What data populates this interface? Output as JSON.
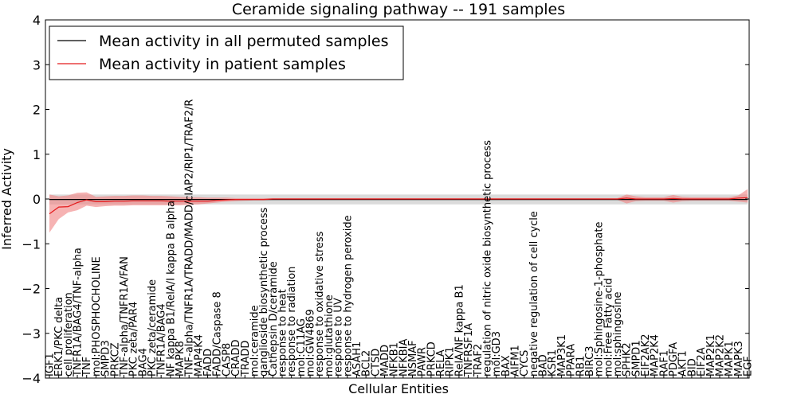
{
  "chart_data": {
    "type": "line",
    "title": "Ceramide signaling pathway -- 191 samples",
    "xlabel": "Cellular Entities",
    "ylabel": "Inferred Activity",
    "ylim": [
      -4,
      4
    ],
    "yticks": [
      4,
      3,
      2,
      1,
      0,
      -1,
      -2,
      -3,
      -4
    ],
    "ytick_labels": [
      "4",
      "3",
      "2",
      "1",
      "0",
      "−1",
      "−2",
      "−3",
      "−4"
    ],
    "grid": false,
    "legend_position": "top-left",
    "categories": [
      "IGF1",
      "ERK1/PKC delta",
      "cell proliferation",
      "TNFR1A/BAG4/TNF-alpha",
      "TNF",
      "mol:PHOSPHOCHOLINE",
      "SMPD3",
      "PRKCZ",
      "TNF-alpha/TNFR1A/FAN",
      "PKC zeta/PAR4",
      "BAG4",
      "PKC zeta/ceramide",
      "TNFR1A/BAG4",
      "NF kappa B1/RelA/I kappa B alpha",
      "MAPK8",
      "TNF-alpha/TNFR1A/TRADD/MADD/cIAP2/RIP1/TRAF2/R",
      "MAP4K4",
      "FADD",
      "FADD/Caspase 8",
      "CASP8",
      "CRADD",
      "TRADD",
      "mol:ceramide",
      "ganglioside biosynthetic process",
      "Cathepsin D/ceramide",
      "response to heat",
      "response to radiation",
      "mol:C11AG",
      "mol:GW4869",
      "response to oxidative stress",
      "mol:glutathione",
      "response to UV",
      "response to hydrogen peroxide",
      "ASAH1",
      "BCL2",
      "CTSD",
      "MADD",
      "NFKB1",
      "NFKBIA",
      "NSMAF",
      "PAWR",
      "PRKCD",
      "RELA",
      "RIPK1",
      "RelA/NF kappa B1",
      "TNFRSF1A",
      "TRAF2",
      "regulation of nitric oxide biosynthetic process",
      "mol:GD3",
      "BAX",
      "AIFM1",
      "CYCS",
      "negative regulation of cell cycle",
      "BAD",
      "KSR1",
      "MAP3K1",
      "PPARA",
      "RB1",
      "BIRC3",
      "mol:Sphingosine-1-phosphate",
      "mol:Free Fatty acid",
      "mol:sphingosine",
      "SPHK2",
      "SMPD1",
      "EIF2AK2",
      "MAP2K4",
      "RAF1",
      "PDGFA",
      "AKT1",
      "BID",
      "EIF2A",
      "MAP2K1",
      "MAP2K2",
      "MAPK1",
      "MAPK3",
      "EGF"
    ],
    "series": [
      {
        "name": "Mean activity in all permuted samples",
        "color": "#000000",
        "band_color": "#bdbdbd",
        "values": [
          -0.01,
          -0.01,
          -0.01,
          -0.01,
          -0.01,
          -0.01,
          -0.01,
          -0.01,
          -0.01,
          -0.01,
          -0.01,
          -0.01,
          -0.01,
          -0.01,
          -0.01,
          -0.01,
          -0.01,
          -0.01,
          -0.01,
          -0.01,
          -0.01,
          -0.01,
          -0.01,
          -0.01,
          -0.01,
          -0.01,
          -0.01,
          -0.01,
          -0.01,
          -0.01,
          -0.01,
          -0.01,
          -0.01,
          -0.01,
          -0.01,
          -0.01,
          -0.01,
          -0.01,
          -0.01,
          -0.01,
          -0.01,
          -0.01,
          -0.01,
          -0.01,
          -0.01,
          -0.01,
          -0.01,
          -0.01,
          -0.01,
          -0.01,
          -0.01,
          -0.01,
          -0.01,
          -0.01,
          -0.01,
          -0.01,
          -0.01,
          -0.01,
          -0.01,
          -0.01,
          -0.01,
          -0.01,
          -0.01,
          -0.01,
          -0.01,
          -0.01,
          -0.01,
          -0.01,
          -0.01,
          -0.01,
          -0.01,
          -0.01,
          -0.01,
          -0.01,
          -0.01,
          -0.01
        ],
        "band_lower": [
          -0.12,
          -0.12,
          -0.12,
          -0.12,
          -0.12,
          -0.12,
          -0.12,
          -0.12,
          -0.12,
          -0.12,
          -0.12,
          -0.12,
          -0.12,
          -0.12,
          -0.12,
          -0.12,
          -0.12,
          -0.12,
          -0.12,
          -0.12,
          -0.12,
          -0.12,
          -0.12,
          -0.12,
          -0.12,
          -0.12,
          -0.12,
          -0.12,
          -0.12,
          -0.12,
          -0.12,
          -0.12,
          -0.12,
          -0.12,
          -0.12,
          -0.12,
          -0.12,
          -0.12,
          -0.12,
          -0.12,
          -0.12,
          -0.12,
          -0.12,
          -0.12,
          -0.12,
          -0.12,
          -0.12,
          -0.12,
          -0.12,
          -0.12,
          -0.12,
          -0.12,
          -0.12,
          -0.12,
          -0.12,
          -0.12,
          -0.12,
          -0.12,
          -0.12,
          -0.12,
          -0.12,
          -0.12,
          -0.12,
          -0.12,
          -0.12,
          -0.12,
          -0.12,
          -0.12,
          -0.12,
          -0.12,
          -0.12,
          -0.12,
          -0.12,
          -0.12,
          -0.12,
          -0.12
        ],
        "band_upper": [
          0.1,
          0.1,
          0.1,
          0.1,
          0.1,
          0.1,
          0.1,
          0.1,
          0.1,
          0.1,
          0.1,
          0.1,
          0.1,
          0.1,
          0.1,
          0.1,
          0.1,
          0.1,
          0.1,
          0.1,
          0.1,
          0.1,
          0.1,
          0.1,
          0.1,
          0.1,
          0.1,
          0.1,
          0.1,
          0.1,
          0.1,
          0.1,
          0.1,
          0.1,
          0.1,
          0.1,
          0.1,
          0.1,
          0.1,
          0.1,
          0.1,
          0.1,
          0.1,
          0.1,
          0.1,
          0.1,
          0.1,
          0.1,
          0.1,
          0.1,
          0.1,
          0.1,
          0.1,
          0.1,
          0.1,
          0.1,
          0.1,
          0.1,
          0.1,
          0.1,
          0.1,
          0.1,
          0.1,
          0.1,
          0.1,
          0.1,
          0.1,
          0.1,
          0.1,
          0.1,
          0.1,
          0.1,
          0.1,
          0.1,
          0.1,
          0.1
        ]
      },
      {
        "name": "Mean activity in patient samples",
        "color": "#e41a1c",
        "band_color": "#f08080",
        "values": [
          -0.33,
          -0.18,
          -0.17,
          -0.08,
          -0.02,
          -0.06,
          -0.06,
          -0.05,
          -0.05,
          -0.04,
          -0.04,
          -0.04,
          -0.04,
          -0.05,
          -0.05,
          -0.05,
          -0.05,
          -0.05,
          -0.03,
          -0.02,
          -0.01,
          -0.01,
          -0.01,
          -0.01,
          0,
          0,
          0,
          0,
          0,
          0,
          0,
          0,
          0,
          0,
          0,
          0,
          0,
          0,
          0,
          0,
          0,
          0,
          0,
          0,
          0,
          0,
          0,
          0,
          0,
          0,
          0,
          0,
          0,
          0,
          0,
          0,
          0,
          0,
          0,
          0,
          0,
          0,
          0.02,
          0,
          0,
          0,
          0,
          0.01,
          0,
          0,
          0,
          0,
          0,
          0,
          0.02,
          0.03
        ],
        "band_lower": [
          -0.75,
          -0.45,
          -0.3,
          -0.25,
          -0.15,
          -0.18,
          -0.16,
          -0.15,
          -0.15,
          -0.14,
          -0.14,
          -0.14,
          -0.14,
          -0.14,
          -0.14,
          -0.13,
          -0.12,
          -0.1,
          -0.08,
          -0.06,
          -0.05,
          -0.04,
          -0.03,
          -0.03,
          -0.02,
          -0.02,
          -0.02,
          -0.02,
          -0.02,
          -0.02,
          -0.02,
          -0.02,
          -0.02,
          -0.02,
          -0.02,
          -0.02,
          -0.02,
          -0.02,
          -0.02,
          -0.02,
          -0.02,
          -0.02,
          -0.02,
          -0.02,
          -0.02,
          -0.02,
          -0.02,
          -0.02,
          -0.02,
          -0.02,
          -0.02,
          -0.02,
          -0.02,
          -0.02,
          -0.02,
          -0.02,
          -0.02,
          -0.02,
          -0.02,
          -0.02,
          -0.02,
          -0.02,
          -0.1,
          -0.05,
          -0.04,
          -0.04,
          -0.04,
          -0.08,
          -0.05,
          -0.04,
          -0.04,
          -0.04,
          -0.04,
          -0.04,
          -0.06,
          -0.08
        ],
        "band_upper": [
          0.1,
          0.06,
          0.08,
          0.14,
          0.15,
          0.05,
          0.06,
          0.07,
          0.07,
          0.08,
          0.08,
          0.07,
          0.07,
          0.06,
          0.05,
          0.04,
          0.04,
          0.03,
          0.03,
          0.03,
          0.02,
          0.02,
          0.02,
          0.02,
          0.02,
          0.02,
          0.02,
          0.02,
          0.02,
          0.02,
          0.02,
          0.02,
          0.02,
          0.02,
          0.02,
          0.02,
          0.02,
          0.02,
          0.02,
          0.02,
          0.02,
          0.02,
          0.02,
          0.02,
          0.02,
          0.02,
          0.02,
          0.02,
          0.02,
          0.02,
          0.02,
          0.02,
          0.02,
          0.02,
          0.02,
          0.02,
          0.02,
          0.02,
          0.02,
          0.02,
          0.02,
          0.02,
          0.1,
          0.06,
          0.04,
          0.04,
          0.04,
          0.09,
          0.05,
          0.04,
          0.04,
          0.04,
          0.04,
          0.04,
          0.08,
          0.22
        ]
      }
    ]
  }
}
